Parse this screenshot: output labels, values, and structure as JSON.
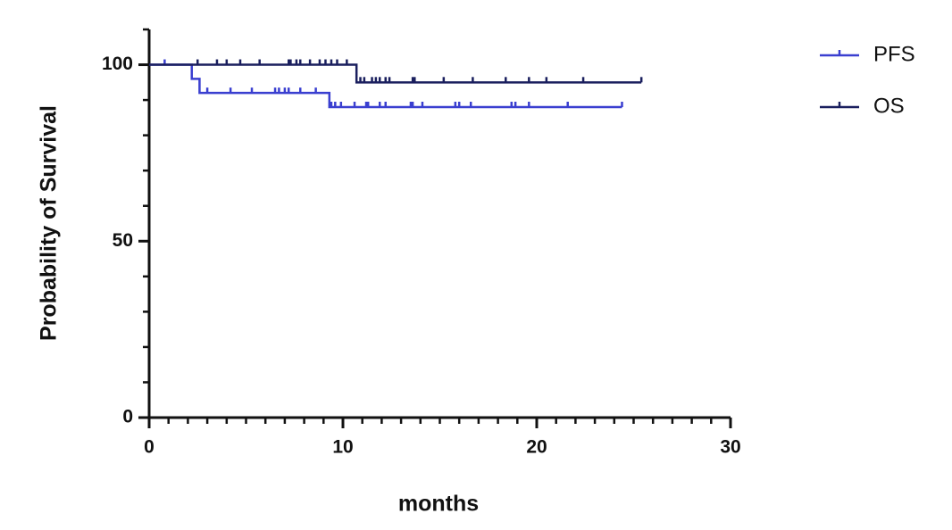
{
  "chart_data": {
    "type": "kaplan-meier",
    "x_label": "months",
    "y_label": "Probability of Survival",
    "xlim": [
      0,
      30
    ],
    "xticks": [
      0,
      10,
      20,
      30
    ],
    "x_minor_step": 1,
    "ylim": [
      0,
      110
    ],
    "yticks": [
      0,
      50,
      100
    ],
    "y_minor_step": 10,
    "legend": "right",
    "series": [
      {
        "name": "PFS",
        "color": "#3a3fd0",
        "x": [
          0,
          2.2,
          2.6,
          9.3,
          24.4
        ],
        "values": [
          100,
          96,
          92,
          88,
          88
        ],
        "censor_x": [
          0.8,
          3.0,
          4.2,
          5.3,
          6.5,
          6.7,
          7.0,
          7.2,
          7.8,
          8.6,
          9.4,
          9.6,
          9.9,
          10.6,
          11.2,
          11.3,
          11.9,
          12.2,
          13.5,
          13.6,
          14.1,
          15.8,
          16.0,
          16.6,
          18.7,
          18.9,
          19.6,
          21.6,
          24.4
        ],
        "censor_values": [
          100,
          92,
          92,
          92,
          92,
          92,
          92,
          92,
          92,
          92,
          88,
          88,
          88,
          88,
          88,
          88,
          88,
          88,
          88,
          88,
          88,
          88,
          88,
          88,
          88,
          88,
          88,
          88,
          88
        ]
      },
      {
        "name": "OS",
        "color": "#1a1f5e",
        "x": [
          0,
          10.7,
          25.4
        ],
        "values": [
          100,
          95,
          95
        ],
        "censor_x": [
          2.5,
          3.5,
          4.0,
          4.7,
          5.7,
          7.2,
          7.3,
          7.6,
          7.8,
          8.3,
          8.8,
          9.1,
          9.4,
          9.7,
          10.2,
          10.9,
          11.1,
          11.5,
          11.7,
          11.9,
          12.2,
          12.4,
          13.6,
          13.7,
          15.2,
          16.7,
          18.4,
          19.6,
          20.5,
          22.4,
          25.4
        ],
        "censor_values": [
          100,
          100,
          100,
          100,
          100,
          100,
          100,
          100,
          100,
          100,
          100,
          100,
          100,
          100,
          100,
          95,
          95,
          95,
          95,
          95,
          95,
          95,
          95,
          95,
          95,
          95,
          95,
          95,
          95,
          95,
          95
        ]
      }
    ]
  }
}
